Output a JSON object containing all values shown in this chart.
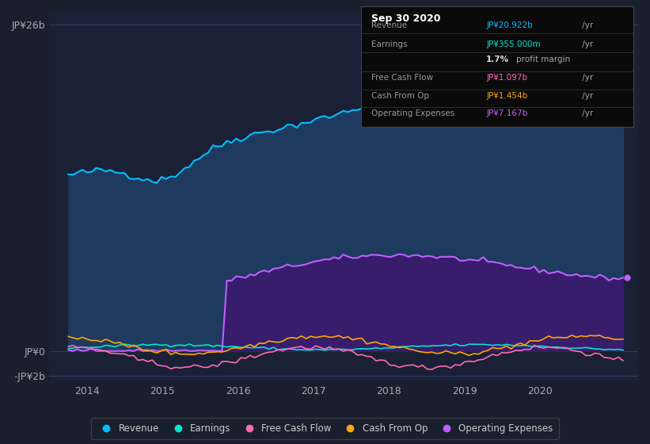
{
  "bg_color": "#1a1f2e",
  "plot_bg_color": "#1a2035",
  "xlim": [
    2013.5,
    2021.3
  ],
  "ylim": [
    -2.5,
    27
  ],
  "xticks": [
    2014,
    2015,
    2016,
    2017,
    2018,
    2019,
    2020
  ],
  "revenue_color": "#00bfff",
  "earnings_color": "#00e5cc",
  "fcf_color": "#ff69b4",
  "cashop_color": "#ffa500",
  "opex_color": "#bf5fff",
  "revenue_fill": "#1e3a5f",
  "opex_fill": "#3a1a6e",
  "legend_items": [
    "Revenue",
    "Earnings",
    "Free Cash Flow",
    "Cash From Op",
    "Operating Expenses"
  ],
  "legend_colors": [
    "#00bfff",
    "#00e5cc",
    "#ff69b4",
    "#ffa500",
    "#bf5fff"
  ],
  "tooltip_title": "Sep 30 2020",
  "tooltip_rows": [
    {
      "label": "Revenue",
      "value": "JP¥20.922b",
      "suffix": " /yr",
      "color": "#00bfff",
      "bold_prefix": ""
    },
    {
      "label": "Earnings",
      "value": "JP¥355.000m",
      "suffix": " /yr",
      "color": "#00e5cc",
      "bold_prefix": ""
    },
    {
      "label": "",
      "value": "1.7%",
      "suffix": " profit margin",
      "color": "#ffffff",
      "bold_prefix": "1.7%"
    },
    {
      "label": "Free Cash Flow",
      "value": "JP¥1.097b",
      "suffix": " /yr",
      "color": "#ff69b4",
      "bold_prefix": ""
    },
    {
      "label": "Cash From Op",
      "value": "JP¥1.454b",
      "suffix": " /yr",
      "color": "#ffa500",
      "bold_prefix": ""
    },
    {
      "label": "Operating Expenses",
      "value": "JP¥7.167b",
      "suffix": " /yr",
      "color": "#bf5fff",
      "bold_prefix": ""
    }
  ]
}
